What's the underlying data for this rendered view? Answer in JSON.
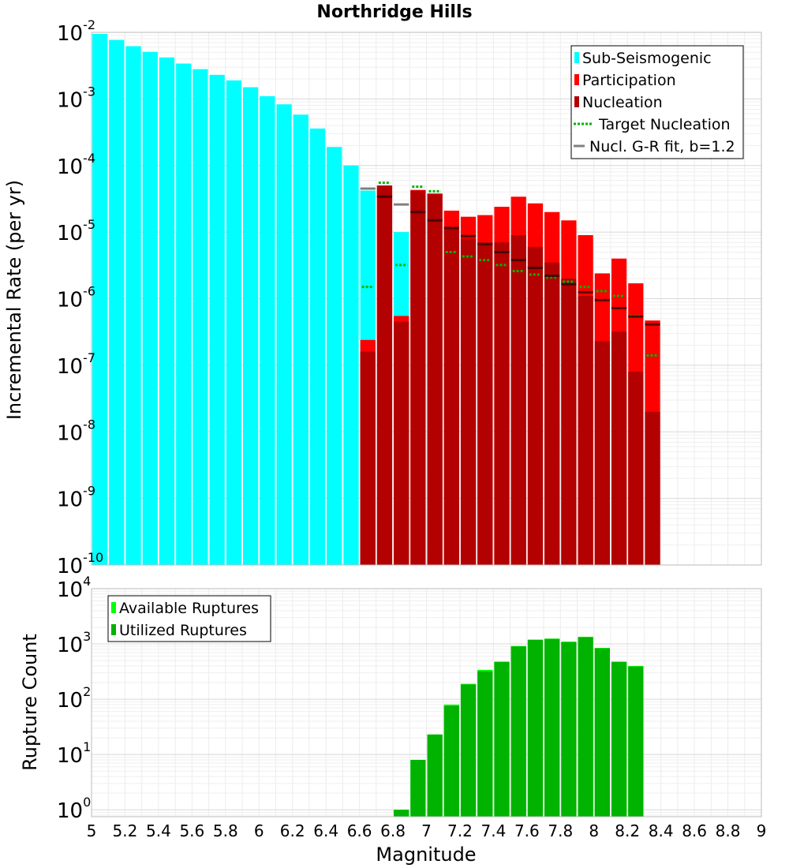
{
  "chart_data": [
    {
      "type": "bar",
      "title": "Northridge Hills",
      "ylabel": "Incremental Rate (per yr)",
      "xlabel": "",
      "y_scale": "log",
      "xlim": [
        5,
        9
      ],
      "ylim": [
        1e-10,
        0.01
      ],
      "y_ticks": [
        {
          "base": "10",
          "exp": "-10"
        },
        {
          "base": "10",
          "exp": "-9"
        },
        {
          "base": "10",
          "exp": "-8"
        },
        {
          "base": "10",
          "exp": "-7"
        },
        {
          "base": "10",
          "exp": "-6"
        },
        {
          "base": "10",
          "exp": "-5"
        },
        {
          "base": "10",
          "exp": "-4"
        },
        {
          "base": "10",
          "exp": "-3"
        },
        {
          "base": "10",
          "exp": "-2"
        }
      ],
      "grid": true,
      "legend_position": "top-right",
      "bar_width": 0.1,
      "series": [
        {
          "name": "Sub-Seismogenic",
          "color": "#00ffff",
          "kind": "bar",
          "x": [
            5.05,
            5.15,
            5.25,
            5.35,
            5.45,
            5.55,
            5.65,
            5.75,
            5.85,
            5.95,
            6.05,
            6.15,
            6.25,
            6.35,
            6.45,
            6.55,
            6.65,
            6.85
          ],
          "y": [
            0.0095,
            0.0077,
            0.0062,
            0.0051,
            0.0042,
            0.0034,
            0.0028,
            0.0023,
            0.0019,
            0.0015,
            0.0011,
            0.00083,
            0.00058,
            0.00036,
            0.00019,
            0.0001,
            4.2e-05,
            1e-05
          ]
        },
        {
          "name": "Participation",
          "color": "#ff0000",
          "kind": "bar",
          "x": [
            6.65,
            6.75,
            6.85,
            6.95,
            7.05,
            7.15,
            7.25,
            7.35,
            7.45,
            7.55,
            7.65,
            7.75,
            7.85,
            7.95,
            8.05,
            8.15,
            8.25,
            8.35
          ],
          "y": [
            2.4e-07,
            5e-05,
            5.5e-07,
            4.3e-05,
            3.8e-05,
            2.1e-05,
            1.7e-05,
            1.8e-05,
            2.4e-05,
            3.4e-05,
            2.7e-05,
            2e-05,
            1.5e-05,
            9e-06,
            2.4e-06,
            4e-06,
            1.7e-06,
            4.7e-07
          ]
        },
        {
          "name": "Nucleation",
          "color": "#b30000",
          "kind": "bar",
          "x": [
            6.65,
            6.75,
            6.85,
            6.95,
            7.05,
            7.15,
            7.25,
            7.35,
            7.45,
            7.55,
            7.65,
            7.75,
            7.85,
            7.95,
            8.05,
            8.15,
            8.25,
            8.35
          ],
          "y": [
            1.6e-07,
            5e-05,
            4.5e-07,
            4.2e-05,
            3.7e-05,
            1.2e-05,
            8e-06,
            7e-06,
            7e-06,
            9e-06,
            6e-06,
            3.5e-06,
            2e-06,
            1.1e-06,
            2.3e-07,
            3.2e-07,
            8e-08,
            2e-08
          ]
        },
        {
          "name": "Target Nucleation",
          "color": "#00b300",
          "kind": "dotted-step",
          "x": [
            6.65,
            6.75,
            6.85,
            6.95,
            7.05,
            7.15,
            7.25,
            7.35,
            7.45,
            7.55,
            7.65,
            7.75,
            7.85,
            7.95,
            8.05,
            8.15,
            8.25,
            8.35
          ],
          "y": [
            1.5e-06,
            5.5e-05,
            3.2e-06,
            4.8e-05,
            4.1e-05,
            5e-06,
            4.3e-06,
            3.8e-06,
            3.2e-06,
            2.6e-06,
            2.3e-06,
            2.1e-06,
            1.8e-06,
            1.5e-06,
            1.3e-06,
            1.1e-06,
            5.5e-07,
            1.4e-07
          ]
        },
        {
          "name": "Nucl. G-R fit, b=1.2",
          "color": "#808080",
          "kind": "step",
          "x": [
            6.65,
            6.75,
            6.85,
            6.95,
            7.05,
            7.15,
            7.25,
            7.35,
            7.45,
            7.55,
            7.65,
            7.75,
            7.85,
            7.95,
            8.05,
            8.15,
            8.25,
            8.35
          ],
          "y": [
            4.5e-05,
            3.4e-05,
            2.6e-05,
            2e-05,
            1.5e-05,
            1.15e-05,
            8.7e-06,
            6.6e-06,
            5e-06,
            3.8e-06,
            2.9e-06,
            2.2e-06,
            1.65e-06,
            1.25e-06,
            9.5e-07,
            7.2e-07,
            5.4e-07,
            4.1e-07
          ]
        }
      ]
    },
    {
      "type": "bar",
      "ylabel": "Rupture Count",
      "xlabel": "Magnitude",
      "y_scale": "log",
      "xlim": [
        5,
        9
      ],
      "ylim": [
        0.75,
        10000
      ],
      "x_ticks": [
        "5",
        "5.2",
        "5.4",
        "5.6",
        "5.8",
        "6",
        "6.2",
        "6.4",
        "6.6",
        "6.8",
        "7",
        "7.2",
        "7.4",
        "7.6",
        "7.8",
        "8",
        "8.2",
        "8.4",
        "8.6",
        "8.8",
        "9"
      ],
      "y_ticks": [
        {
          "base": "10",
          "exp": "0"
        },
        {
          "base": "10",
          "exp": "1"
        },
        {
          "base": "10",
          "exp": "2"
        },
        {
          "base": "10",
          "exp": "3"
        },
        {
          "base": "10",
          "exp": "4"
        }
      ],
      "grid": true,
      "legend_position": "top-left",
      "bar_width": 0.1,
      "series": [
        {
          "name": "Available Ruptures",
          "color": "#00ff00",
          "kind": "bar",
          "x": [
            6.85,
            6.95,
            7.05,
            7.15,
            7.25,
            7.35,
            7.45,
            7.55,
            7.65,
            7.75,
            7.85,
            7.95,
            8.05,
            8.15,
            8.25
          ],
          "y": [
            1,
            8,
            23,
            80,
            190,
            340,
            480,
            920,
            1200,
            1250,
            1100,
            1350,
            850,
            480,
            400
          ]
        },
        {
          "name": "Utilized Ruptures",
          "color": "#00b300",
          "kind": "bar",
          "x": [
            6.85,
            6.95,
            7.05,
            7.15,
            7.25,
            7.35,
            7.45,
            7.55,
            7.65,
            7.75,
            7.85,
            7.95,
            8.05,
            8.15,
            8.25
          ],
          "y": [
            1,
            8,
            23,
            76,
            185,
            320,
            470,
            900,
            1180,
            1230,
            1080,
            1320,
            830,
            470,
            390
          ]
        }
      ]
    }
  ]
}
